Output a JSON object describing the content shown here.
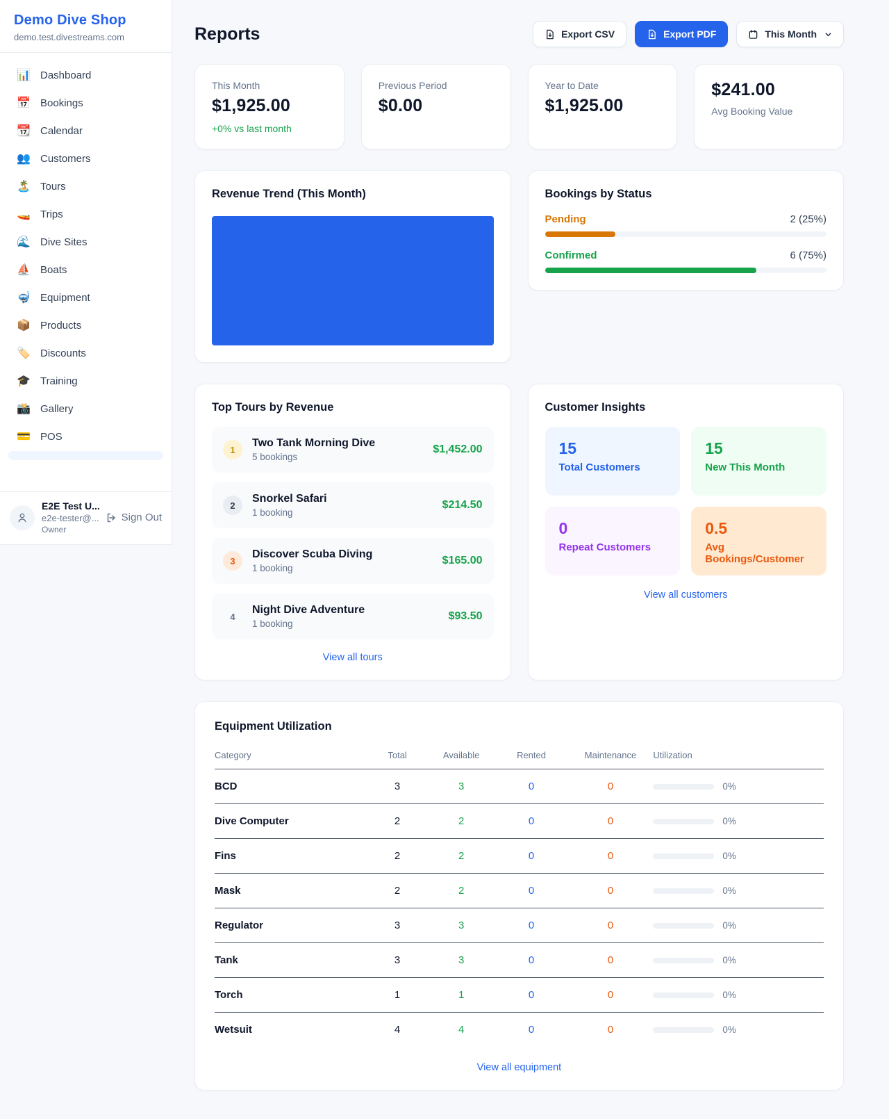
{
  "colors": {
    "accent_blue": "#2563eb",
    "green": "#16a34a",
    "amber": "#d97706",
    "orange": "#ea580c",
    "purple": "#9333ea"
  },
  "sidebar": {
    "title": "Demo Dive Shop",
    "subdomain": "demo.test.divestreams.com",
    "items": [
      {
        "emoji": "📊",
        "label": "Dashboard"
      },
      {
        "emoji": "📅",
        "label": "Bookings"
      },
      {
        "emoji": "📆",
        "label": "Calendar"
      },
      {
        "emoji": "👥",
        "label": "Customers"
      },
      {
        "emoji": "🏝️",
        "label": "Tours"
      },
      {
        "emoji": "🚤",
        "label": "Trips"
      },
      {
        "emoji": "🌊",
        "label": "Dive Sites"
      },
      {
        "emoji": "⛵",
        "label": "Boats"
      },
      {
        "emoji": "🤿",
        "label": "Equipment"
      },
      {
        "emoji": "📦",
        "label": "Products"
      },
      {
        "emoji": "🏷️",
        "label": "Discounts"
      },
      {
        "emoji": "🎓",
        "label": "Training"
      },
      {
        "emoji": "📸",
        "label": "Gallery"
      },
      {
        "emoji": "💳",
        "label": "POS"
      }
    ],
    "user": {
      "name": "E2E Test U...",
      "email": "e2e-tester@...",
      "role": "Owner",
      "sign_out_label": "Sign Out"
    }
  },
  "header": {
    "title": "Reports",
    "export_csv_label": "Export CSV",
    "export_pdf_label": "Export PDF",
    "period_label": "This Month"
  },
  "stats": [
    {
      "label": "This Month",
      "value": "$1,925.00",
      "delta": "+0% vs last month"
    },
    {
      "label": "Previous Period",
      "value": "$0.00"
    },
    {
      "label": "Year to Date",
      "value": "$1,925.00"
    },
    {
      "label": "Avg Booking Value",
      "value": "$241.00"
    }
  ],
  "revenue_trend": {
    "title": "Revenue Trend (This Month)",
    "chart_data": {
      "type": "bar",
      "appearance": "single solid blue bar filling the entire plot area, no axes or labels visible",
      "color": "#2563eb"
    }
  },
  "bookings_by_status": {
    "title": "Bookings by Status",
    "rows": [
      {
        "label": "Pending",
        "count": "2 (25%)",
        "width": "25%",
        "color": "#d97706"
      },
      {
        "label": "Confirmed",
        "count": "6 (75%)",
        "width": "75%",
        "color": "#16a34a"
      }
    ]
  },
  "top_tours": {
    "title": "Top Tours by Revenue",
    "link": "View all tours",
    "rows": [
      {
        "rank": "1",
        "name": "Two Tank Morning Dive",
        "bookings": "5 bookings",
        "revenue": "$1,452.00"
      },
      {
        "rank": "2",
        "name": "Snorkel Safari",
        "bookings": "1 booking",
        "revenue": "$214.50"
      },
      {
        "rank": "3",
        "name": "Discover Scuba Diving",
        "bookings": "1 booking",
        "revenue": "$165.00"
      },
      {
        "rank": "4",
        "name": "Night Dive Adventure",
        "bookings": "1 booking",
        "revenue": "$93.50"
      }
    ]
  },
  "customer_insights": {
    "title": "Customer Insights",
    "link": "View all customers",
    "tiles": [
      {
        "value": "15",
        "label": "Total Customers"
      },
      {
        "value": "15",
        "label": "New This Month"
      },
      {
        "value": "0",
        "label": "Repeat Customers"
      },
      {
        "value": "0.5",
        "label": "Avg Bookings/Customer"
      }
    ]
  },
  "equipment": {
    "title": "Equipment Utilization",
    "link": "View all equipment",
    "columns": [
      "Category",
      "Total",
      "Available",
      "Rented",
      "Maintenance",
      "Utilization"
    ],
    "rows": [
      {
        "category": "BCD",
        "total": "3",
        "available": "3",
        "rented": "0",
        "maintenance": "0",
        "utilization": "0%"
      },
      {
        "category": "Dive Computer",
        "total": "2",
        "available": "2",
        "rented": "0",
        "maintenance": "0",
        "utilization": "0%"
      },
      {
        "category": "Fins",
        "total": "2",
        "available": "2",
        "rented": "0",
        "maintenance": "0",
        "utilization": "0%"
      },
      {
        "category": "Mask",
        "total": "2",
        "available": "2",
        "rented": "0",
        "maintenance": "0",
        "utilization": "0%"
      },
      {
        "category": "Regulator",
        "total": "3",
        "available": "3",
        "rented": "0",
        "maintenance": "0",
        "utilization": "0%"
      },
      {
        "category": "Tank",
        "total": "3",
        "available": "3",
        "rented": "0",
        "maintenance": "0",
        "utilization": "0%"
      },
      {
        "category": "Torch",
        "total": "1",
        "available": "1",
        "rented": "0",
        "maintenance": "0",
        "utilization": "0%"
      },
      {
        "category": "Wetsuit",
        "total": "4",
        "available": "4",
        "rented": "0",
        "maintenance": "0",
        "utilization": "0%"
      }
    ]
  }
}
